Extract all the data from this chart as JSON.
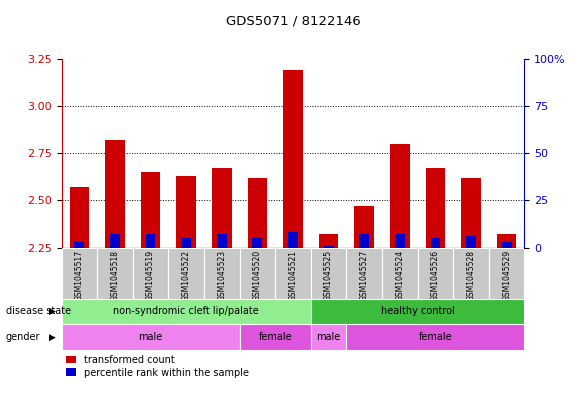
{
  "title": "GDS5071 / 8122146",
  "samples": [
    "GSM1045517",
    "GSM1045518",
    "GSM1045519",
    "GSM1045522",
    "GSM1045523",
    "GSM1045520",
    "GSM1045521",
    "GSM1045525",
    "GSM1045527",
    "GSM1045524",
    "GSM1045526",
    "GSM1045528",
    "GSM1045529"
  ],
  "red_values": [
    2.57,
    2.82,
    2.65,
    2.63,
    2.67,
    2.62,
    3.19,
    2.32,
    2.47,
    2.8,
    2.67,
    2.62,
    2.32
  ],
  "blue_values": [
    2.28,
    2.32,
    2.32,
    2.3,
    2.32,
    2.3,
    2.33,
    2.26,
    2.32,
    2.32,
    2.3,
    2.31,
    2.28
  ],
  "baseline": 2.25,
  "ylim": [
    2.25,
    3.25
  ],
  "yticks_left": [
    2.25,
    2.5,
    2.75,
    3.0,
    3.25
  ],
  "yticks_right": [
    0,
    25,
    50,
    75,
    100
  ],
  "ytick_labels_right": [
    "0",
    "25",
    "50",
    "75",
    "100%"
  ],
  "grid_lines": [
    2.5,
    2.75,
    3.0
  ],
  "disease_state_groups": [
    {
      "label": "non-syndromic cleft lip/palate",
      "start": 0,
      "end": 7,
      "color": "#90ee90"
    },
    {
      "label": "healthy control",
      "start": 7,
      "end": 13,
      "color": "#3dbb3d"
    }
  ],
  "gender_groups": [
    {
      "label": "male",
      "start": 0,
      "end": 5,
      "color": "#ee82ee"
    },
    {
      "label": "female",
      "start": 5,
      "end": 7,
      "color": "#dd55dd"
    },
    {
      "label": "male",
      "start": 7,
      "end": 8,
      "color": "#ee82ee"
    },
    {
      "label": "female",
      "start": 8,
      "end": 13,
      "color": "#dd55dd"
    }
  ],
  "legend_items": [
    {
      "label": "transformed count",
      "color": "#cc0000"
    },
    {
      "label": "percentile rank within the sample",
      "color": "#0000cc"
    }
  ],
  "bar_width": 0.55,
  "red_color": "#cc0000",
  "blue_color": "#0000cc",
  "tick_color_left": "#cc0000",
  "tick_color_right": "#0000cc",
  "sample_box_color": "#c8c8c8",
  "plot_bg_color": "#ffffff"
}
